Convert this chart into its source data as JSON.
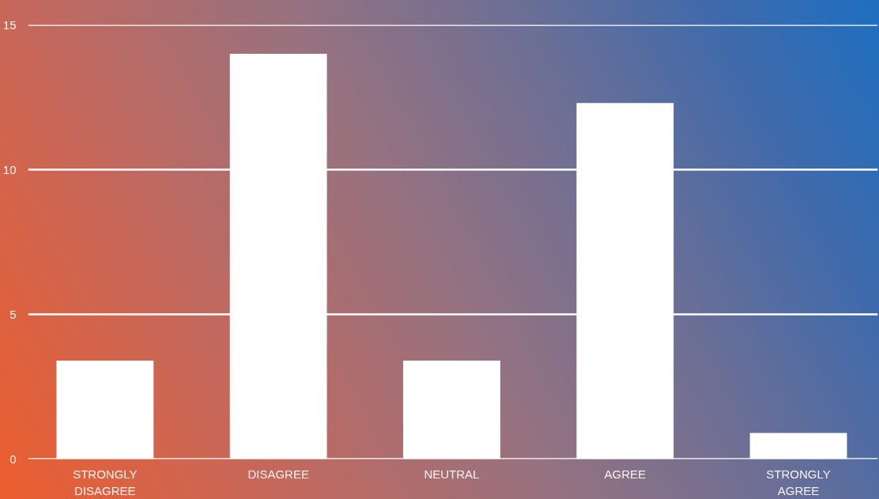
{
  "chart_data": {
    "type": "bar",
    "categories": [
      "STRONGLY\nDISAGREE",
      "DISAGREE",
      "NEUTRAL",
      "AGREE",
      "STRONGLY\nAGREE"
    ],
    "values": [
      3.4,
      14,
      3.4,
      12.3,
      0.9
    ],
    "color": "#ffffff",
    "ylim": [
      0,
      15
    ],
    "yticks": [
      0,
      5,
      10,
      15
    ],
    "grid": "y"
  }
}
